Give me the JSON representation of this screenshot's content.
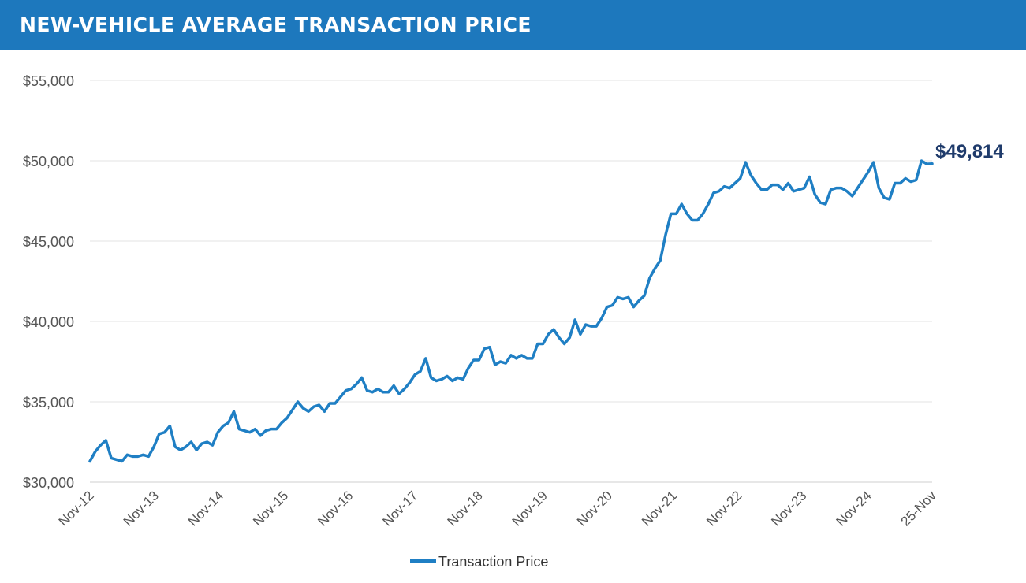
{
  "header": {
    "title": "NEW-VEHICLE AVERAGE TRANSACTION PRICE"
  },
  "colors": {
    "header_bg": "#1d78bd",
    "line": "#1f7fc4",
    "last_label": "#1f3b6b",
    "axis_text": "#555555",
    "grid": "#e3e3e3"
  },
  "chart_data": {
    "type": "line",
    "title": "NEW-VEHICLE AVERAGE TRANSACTION PRICE",
    "xlabel": "",
    "ylabel": "",
    "ylim": [
      30000,
      55000
    ],
    "yticks": [
      30000,
      35000,
      40000,
      45000,
      50000,
      55000
    ],
    "ytick_labels": [
      "$30,000",
      "$35,000",
      "$40,000",
      "$45,000",
      "$50,000",
      "$55,000"
    ],
    "x_start": "Nov-12",
    "x_end": "Nov-25",
    "xtick_labels": [
      "Nov-12",
      "Nov-13",
      "Nov-14",
      "Nov-15",
      "Nov-16",
      "Nov-17",
      "Nov-18",
      "Nov-19",
      "Nov-20",
      "Nov-21",
      "Nov-22",
      "Nov-23",
      "Nov-24",
      "25-Nov"
    ],
    "legend": {
      "position": "bottom-center",
      "entries": [
        "Transaction Price"
      ]
    },
    "grid": true,
    "last_value_label": "$49,814",
    "series": [
      {
        "name": "Transaction Price",
        "values": [
          31300,
          31900,
          32300,
          32600,
          31500,
          31400,
          31300,
          31700,
          31600,
          31600,
          31700,
          31600,
          32200,
          33000,
          33100,
          33500,
          32200,
          32000,
          32200,
          32500,
          32000,
          32400,
          32500,
          32300,
          33100,
          33500,
          33700,
          34400,
          33300,
          33200,
          33100,
          33300,
          32900,
          33200,
          33300,
          33300,
          33700,
          34000,
          34500,
          35000,
          34600,
          34400,
          34700,
          34800,
          34400,
          34900,
          34900,
          35300,
          35700,
          35800,
          36100,
          36500,
          35700,
          35600,
          35800,
          35600,
          35600,
          36000,
          35500,
          35800,
          36200,
          36700,
          36900,
          37700,
          36500,
          36300,
          36400,
          36600,
          36300,
          36500,
          36400,
          37100,
          37600,
          37600,
          38300,
          38400,
          37300,
          37500,
          37400,
          37900,
          37700,
          37900,
          37700,
          37700,
          38600,
          38600,
          39200,
          39500,
          39000,
          38600,
          39000,
          40100,
          39200,
          39800,
          39700,
          39700,
          40200,
          40900,
          41000,
          41500,
          41400,
          41500,
          40900,
          41300,
          41600,
          42700,
          43300,
          43800,
          45400,
          46700,
          46700,
          47300,
          46700,
          46300,
          46300,
          46700,
          47300,
          48000,
          48100,
          48400,
          48300,
          48600,
          48900,
          49900,
          49100,
          48600,
          48200,
          48200,
          48500,
          48500,
          48200,
          48600,
          48100,
          48200,
          48300,
          49000,
          47900,
          47400,
          47300,
          48200,
          48300,
          48300,
          48100,
          47800,
          48300,
          48800,
          49300,
          49900,
          48300,
          47700,
          47600,
          48600,
          48600,
          48900,
          48700,
          48800,
          50000,
          49800,
          49814
        ]
      }
    ]
  }
}
